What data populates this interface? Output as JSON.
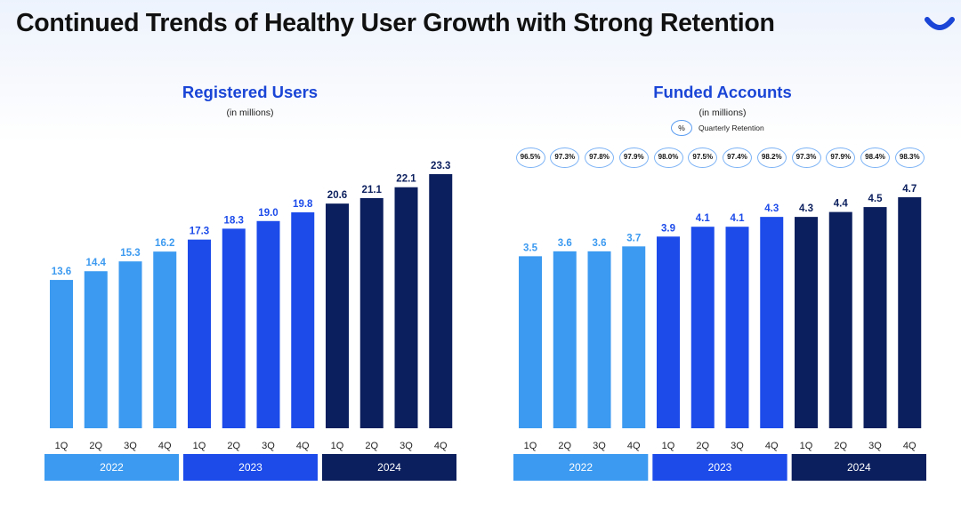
{
  "page": {
    "title": "Continued Trends of Healthy User Growth with Strong Retention"
  },
  "colors": {
    "y2022": "#3c9af0",
    "y2023": "#1c4bea",
    "y2024": "#0b1f5e",
    "label2022": "#3c9af0",
    "label2023": "#1c4bea",
    "label2024": "#0b1f5e",
    "retention_border": "#7db3f5"
  },
  "retention_legend": {
    "symbol": "%",
    "label": "Quarterly Retention"
  },
  "chart_data": [
    {
      "type": "bar",
      "title": "Registered Users",
      "subtitle": "(in millions)",
      "categories": [
        "1Q",
        "2Q",
        "3Q",
        "4Q",
        "1Q",
        "2Q",
        "3Q",
        "4Q",
        "1Q",
        "2Q",
        "3Q",
        "4Q"
      ],
      "groups": [
        "2022",
        "2023",
        "2024"
      ],
      "values": [
        13.6,
        14.4,
        15.3,
        16.2,
        17.3,
        18.3,
        19.0,
        19.8,
        20.6,
        21.1,
        22.1,
        23.3
      ],
      "value_labels": [
        "13.6",
        "14.4",
        "15.3",
        "16.2",
        "17.3",
        "18.3",
        "19.0",
        "19.8",
        "20.6",
        "21.1",
        "22.1",
        "23.3"
      ],
      "ylim": [
        0,
        23.3
      ]
    },
    {
      "type": "bar",
      "title": "Funded Accounts",
      "subtitle": "(in millions)",
      "categories": [
        "1Q",
        "2Q",
        "3Q",
        "4Q",
        "1Q",
        "2Q",
        "3Q",
        "4Q",
        "1Q",
        "2Q",
        "3Q",
        "4Q"
      ],
      "groups": [
        "2022",
        "2023",
        "2024"
      ],
      "values": [
        3.5,
        3.6,
        3.6,
        3.7,
        3.9,
        4.1,
        4.1,
        4.3,
        4.3,
        4.4,
        4.5,
        4.7
      ],
      "value_labels": [
        "3.5",
        "3.6",
        "3.6",
        "3.7",
        "3.9",
        "4.1",
        "4.1",
        "4.3",
        "4.3",
        "4.4",
        "4.5",
        "4.7"
      ],
      "ylim": [
        0,
        4.7
      ],
      "retention": [
        "96.5%",
        "97.3%",
        "97.8%",
        "97.9%",
        "98.0%",
        "97.5%",
        "97.4%",
        "98.2%",
        "97.3%",
        "97.9%",
        "98.4%",
        "98.3%"
      ]
    }
  ]
}
